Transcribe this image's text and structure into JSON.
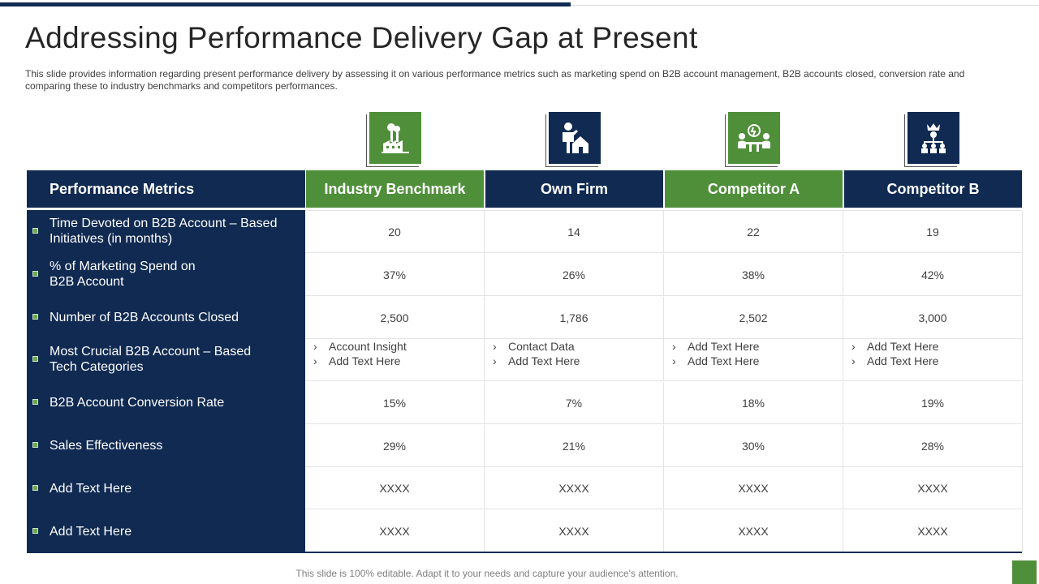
{
  "slide": {
    "title": "Addressing Performance Delivery Gap at Present",
    "subtitle": "This slide provides information regarding present performance delivery by assessing it on various performance metrics such as marketing spend on B2B account management, B2B accounts closed, conversion rate and comparing these to industry benchmarks and competitors performances.",
    "footer": "This slide is 100% editable. Adapt it to your needs and capture your audience's attention."
  },
  "colors": {
    "navy": "#102a52",
    "green": "#4f8f3a"
  },
  "table": {
    "headers": [
      "Performance Metrics",
      "Industry Benchmark",
      "Own Firm",
      "Competitor A",
      "Competitor B"
    ],
    "header_icons": [
      "factory-icon",
      "person-home-icon",
      "meeting-idea-icon",
      "org-hierarchy-icon"
    ],
    "rows": [
      {
        "metric": "Time Devoted on B2B Account – Based Initiatives (in months)",
        "values": [
          "20",
          "14",
          "22",
          "19"
        ]
      },
      {
        "metric": "% of Marketing Spend on B2B Account",
        "values": [
          "37%",
          "26%",
          "38%",
          "42%"
        ]
      },
      {
        "metric": "Number of B2B Accounts Closed",
        "values": [
          "2,500",
          "1,786",
          "2,502",
          "3,000"
        ]
      },
      {
        "metric": "Most Crucial B2B Account – Based Tech Categories",
        "lists": [
          [
            "Account Insight",
            "Add Text Here"
          ],
          [
            "Contact Data",
            "Add Text Here"
          ],
          [
            "Add Text Here",
            "Add Text Here"
          ],
          [
            "Add Text Here",
            "Add Text Here"
          ]
        ]
      },
      {
        "metric": "B2B Account Conversion Rate",
        "values": [
          "15%",
          "7%",
          "18%",
          "19%"
        ]
      },
      {
        "metric": "Sales Effectiveness",
        "values": [
          "29%",
          "21%",
          "30%",
          "28%"
        ]
      },
      {
        "metric": "Add Text Here",
        "values": [
          "XXXX",
          "XXXX",
          "XXXX",
          "XXXX"
        ]
      },
      {
        "metric": "Add Text Here",
        "values": [
          "XXXX",
          "XXXX",
          "XXXX",
          "XXXX"
        ]
      }
    ]
  }
}
